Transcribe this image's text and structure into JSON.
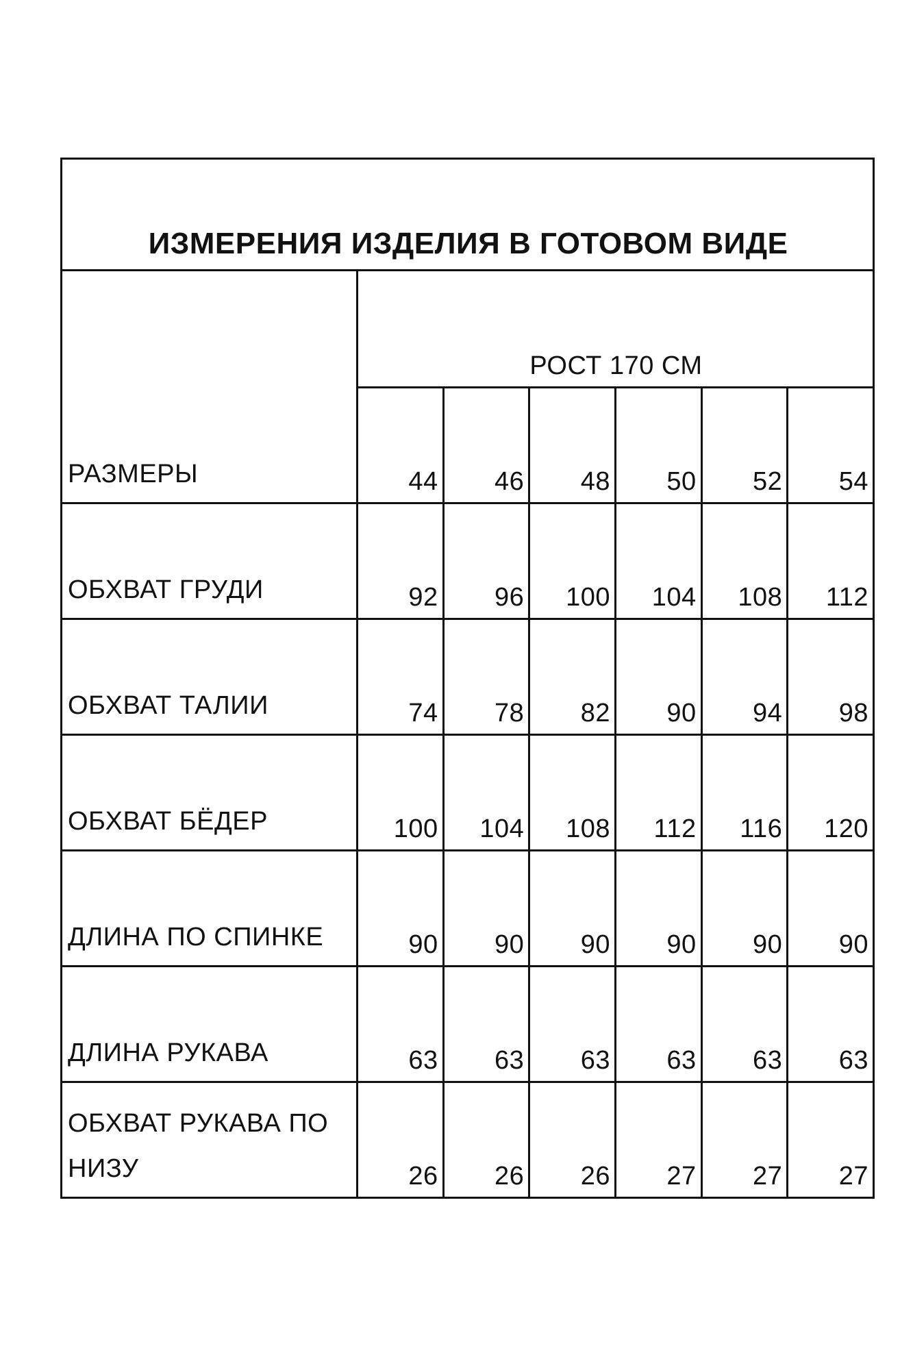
{
  "title": "ИЗМЕРЕНИЯ ИЗДЕЛИЯ В ГОТОВОМ ВИДЕ",
  "growth": "РОСТ 170 СМ",
  "sizes_label": "РАЗМЕРЫ",
  "sizes": [
    "44",
    "46",
    "48",
    "50",
    "52",
    "54"
  ],
  "rows": [
    {
      "label": "ОБХВАТ ГРУДИ",
      "values": [
        "92",
        "96",
        "100",
        "104",
        "108",
        "112"
      ]
    },
    {
      "label": "ОБХВАТ ТАЛИИ",
      "values": [
        "74",
        "78",
        "82",
        "90",
        "94",
        "98"
      ]
    },
    {
      "label": "ОБХВАТ БЁДЕР",
      "values": [
        "100",
        "104",
        "108",
        "112",
        "116",
        "120"
      ]
    },
    {
      "label": "ДЛИНА ПО СПИНКЕ",
      "values": [
        "90",
        "90",
        "90",
        "90",
        "90",
        "90"
      ]
    },
    {
      "label": "ДЛИНА РУКАВА",
      "values": [
        "63",
        "63",
        "63",
        "63",
        "63",
        "63"
      ]
    },
    {
      "label": "ОБХВАТ РУКАВА ПО НИЗУ",
      "values": [
        "26",
        "26",
        "26",
        "27",
        "27",
        "27"
      ]
    }
  ]
}
